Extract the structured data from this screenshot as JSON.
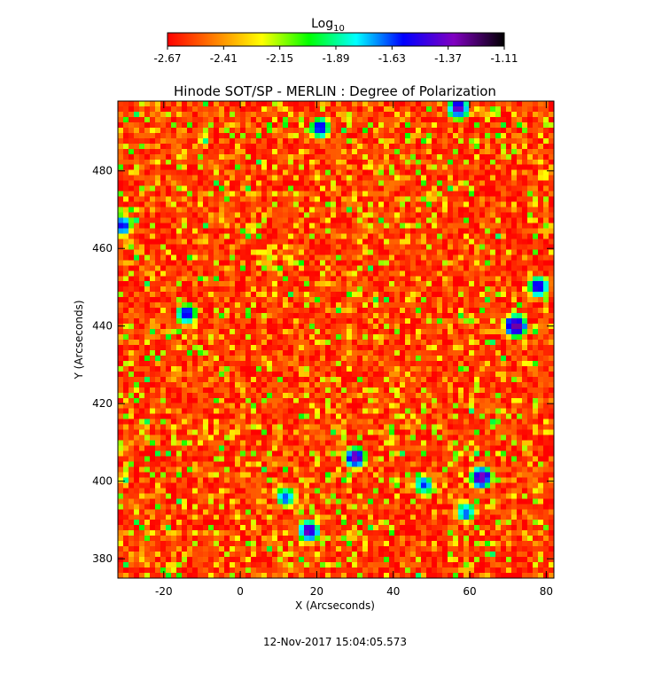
{
  "chart_data": {
    "type": "heatmap",
    "title": "Hinode SOT/SP - MERLIN : Degree of Polarization",
    "xlabel": "X (Arcseconds)",
    "ylabel": "Y (Arcseconds)",
    "xlim": [
      -32,
      82
    ],
    "ylim": [
      375,
      498
    ],
    "x_ticks": [
      -20,
      0,
      20,
      40,
      60,
      80
    ],
    "y_ticks": [
      380,
      400,
      420,
      440,
      460,
      480
    ],
    "colorbar": {
      "title": "Log",
      "title_subscript": "10",
      "range": [
        -2.67,
        -1.11
      ],
      "tick_labels": [
        "-2.67",
        "-2.41",
        "-2.15",
        "-1.89",
        "-1.63",
        "-1.37",
        "-1.11"
      ],
      "colors": [
        "#ff0000",
        "#ff7f00",
        "#ffff00",
        "#00ff00",
        "#00ffff",
        "#0000ff",
        "#8000c0",
        "#000000"
      ]
    },
    "background_level": -2.6,
    "strong_regions": [
      {
        "x": 30,
        "y": 406,
        "peak": -1.35
      },
      {
        "x": 63,
        "y": 401,
        "peak": -1.3
      },
      {
        "x": 18,
        "y": 387,
        "peak": -1.4
      },
      {
        "x": 72,
        "y": 440,
        "peak": -1.25
      },
      {
        "x": 78,
        "y": 450,
        "peak": -1.45
      },
      {
        "x": -14,
        "y": 443,
        "peak": -1.5
      },
      {
        "x": -31,
        "y": 466,
        "peak": -1.5
      },
      {
        "x": 57,
        "y": 496,
        "peak": -1.4
      },
      {
        "x": 21,
        "y": 491,
        "peak": -1.5
      },
      {
        "x": 48,
        "y": 399,
        "peak": -1.6
      },
      {
        "x": 12,
        "y": 396,
        "peak": -1.6
      },
      {
        "x": 59,
        "y": 392,
        "peak": -1.6
      }
    ]
  },
  "timestamp": "12-Nov-2017 15:04:05.573"
}
